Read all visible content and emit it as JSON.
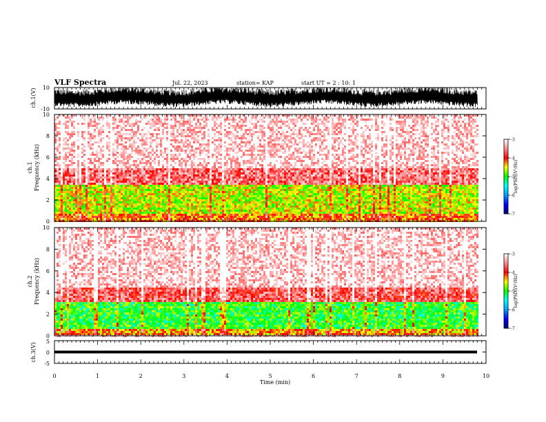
{
  "header": {
    "title": "VLF Spectra",
    "date": "Jul. 22, 2023",
    "station": "station= KAP",
    "start": "start  UT =   2 : 10: 1"
  },
  "colors": {
    "waveform": "#000000",
    "colorbar": [
      "#000080",
      "#0000ff",
      "#00ffff",
      "#00ff00",
      "#ffff00",
      "#ff0000",
      "#ffffff"
    ]
  },
  "chart_data": [
    {
      "type": "line",
      "panel": "ch1-waveform",
      "ylabel": "ch.1(V)",
      "yticks": [
        "10",
        "-10"
      ],
      "ylim": [
        -10,
        10
      ],
      "xlim": [
        0,
        10
      ],
      "note_values": "dense oscillating waveform, approx envelope -6 to +10 V over full record"
    },
    {
      "type": "heatmap",
      "panel": "ch1-spectrogram",
      "ylabel": "ch.1\nFrequency (kHz)",
      "yticks": [
        "0",
        "2",
        "4",
        "6",
        "8",
        "10"
      ],
      "ylim": [
        0,
        10
      ],
      "xlim": [
        0,
        10
      ],
      "colorbar": {
        "label": "log(PSD)(V²/Hz)",
        "ticks": [
          "-3",
          "-4",
          "-5",
          "-6",
          "-7"
        ],
        "range": [
          -7,
          -3
        ]
      },
      "bands": [
        {
          "f_low": 0,
          "f_high": 0.7,
          "level": -4.2
        },
        {
          "f_low": 0.7,
          "f_high": 3.5,
          "level": -4.6
        },
        {
          "f_low": 3.5,
          "f_high": 5.0,
          "level": -3.6
        },
        {
          "f_low": 5.0,
          "f_high": 10,
          "level": -3.2
        }
      ]
    },
    {
      "type": "heatmap",
      "panel": "ch2-spectrogram",
      "ylabel": "ch.2\nFrequency (kHz)",
      "yticks": [
        "0",
        "2",
        "4",
        "6",
        "8",
        "10"
      ],
      "ylim": [
        0,
        10
      ],
      "xlim": [
        0,
        10
      ],
      "colorbar": {
        "label": "log(PSD)(V²/Hz)",
        "ticks": [
          "-3",
          "-4",
          "-5",
          "-6",
          "-7"
        ],
        "range": [
          -7,
          -3
        ]
      },
      "bands": [
        {
          "f_low": 0,
          "f_high": 0.6,
          "level": -4.3
        },
        {
          "f_low": 0.6,
          "f_high": 3.2,
          "level": -5.0
        },
        {
          "f_low": 3.2,
          "f_high": 4.5,
          "level": -3.7
        },
        {
          "f_low": 4.5,
          "f_high": 10,
          "level": -3.2
        }
      ]
    },
    {
      "type": "line",
      "panel": "ch3-waveform",
      "ylabel": "ch.3(V)",
      "yticks": [
        "5",
        "0",
        "-5"
      ],
      "ylim": [
        -5,
        5
      ],
      "xlim": [
        0,
        10
      ],
      "xlabel": "Time (min)",
      "xticks": [
        "0",
        "1",
        "2",
        "3",
        "4",
        "5",
        "6",
        "7",
        "8",
        "9",
        "10"
      ],
      "note_values": "narrow band around 0 V, approx ±0.5 V, ending near 9.8 min"
    }
  ]
}
